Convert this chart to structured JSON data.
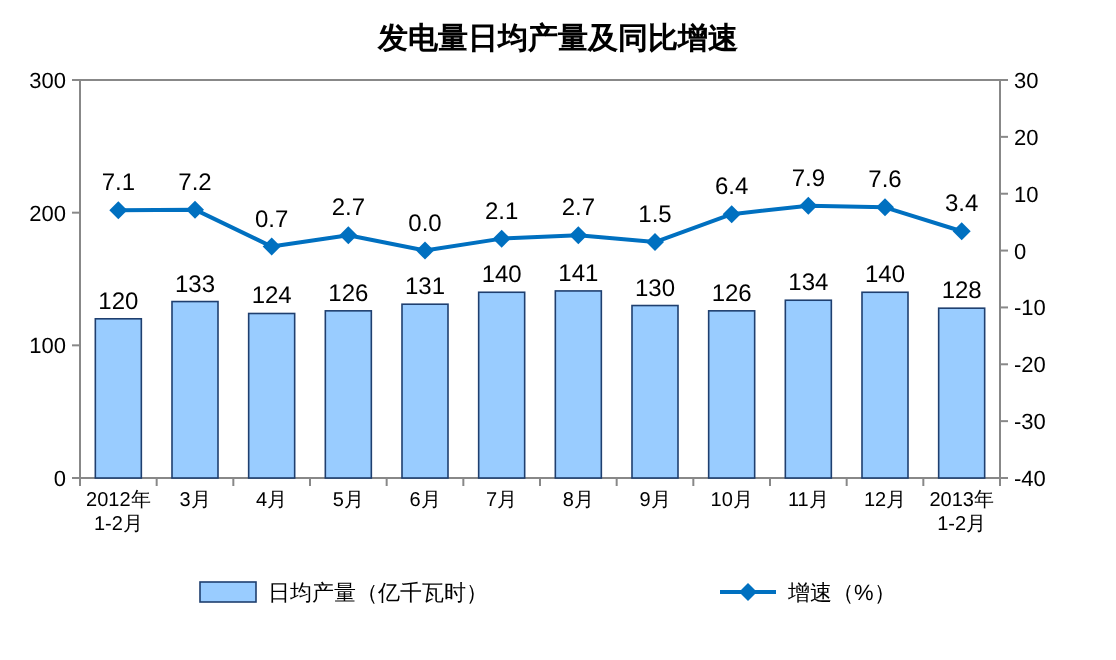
{
  "chart_data": {
    "type": "bar",
    "title": "发电量日均产量及同比增速",
    "categories": [
      "2012年\n1-2月",
      "3月",
      "4月",
      "5月",
      "6月",
      "7月",
      "8月",
      "9月",
      "10月",
      "11月",
      "12月",
      "2013年\n1-2月"
    ],
    "series": [
      {
        "name": "日均产量（亿千瓦时）",
        "color": "#99ccff",
        "values": [
          120,
          133,
          124,
          126,
          131,
          140,
          141,
          130,
          126,
          134,
          140,
          128
        ],
        "value_labels": [
          "120",
          "133",
          "124",
          "126",
          "131",
          "140",
          "141",
          "130",
          "126",
          "134",
          "140",
          "128"
        ]
      },
      {
        "name": "增速（%）",
        "type": "line",
        "axis": "y2",
        "color": "#0070c0",
        "marker": "diamond",
        "line_style": "solid",
        "values": [
          7.1,
          7.2,
          0.7,
          2.7,
          0.0,
          2.1,
          2.7,
          1.5,
          6.4,
          7.9,
          7.6,
          3.4
        ],
        "value_labels": [
          "7.1",
          "7.2",
          "0.7",
          "2.7",
          "0.0",
          "2.1",
          "2.7",
          "1.5",
          "6.4",
          "7.9",
          "7.6",
          "3.4"
        ]
      }
    ],
    "ylim": [
      0,
      300
    ],
    "yticks": [
      0,
      100,
      200,
      300
    ],
    "y2lim": [
      -40,
      30
    ],
    "y2ticks": [
      -40,
      -30,
      -20,
      -10,
      0,
      10,
      20,
      30
    ],
    "grid": false,
    "legend": "bottom"
  }
}
